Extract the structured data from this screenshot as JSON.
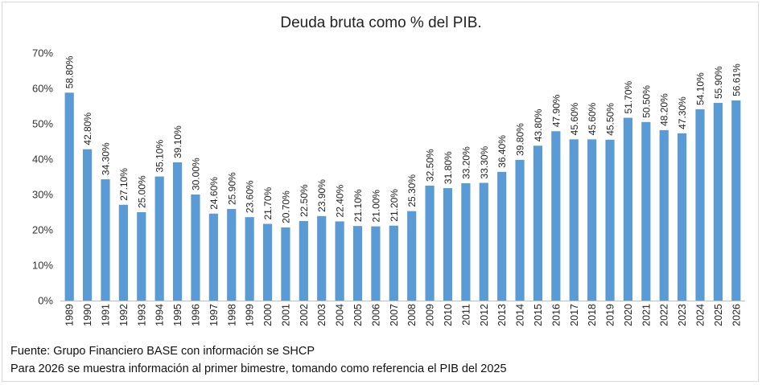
{
  "chart_data": {
    "type": "bar",
    "title": "Deuda bruta como % del PIB.",
    "xlabel": "",
    "ylabel": "",
    "ylim": [
      0,
      70
    ],
    "yticks": [
      "0%",
      "10%",
      "20%",
      "30%",
      "40%",
      "50%",
      "60%",
      "70%"
    ],
    "grid": false,
    "legend": "none",
    "bar_color": "#5b9bd5",
    "categories": [
      "1989",
      "1990",
      "1991",
      "1992",
      "1993",
      "1994",
      "1995",
      "1996",
      "1997",
      "1998",
      "1999",
      "2000",
      "2001",
      "2002",
      "2003",
      "2004",
      "2005",
      "2006",
      "2007",
      "2008",
      "2009",
      "2010",
      "2011",
      "2012",
      "2013",
      "2014",
      "2015",
      "2016",
      "2017",
      "2018",
      "2019",
      "2020",
      "2021",
      "2022",
      "2023",
      "2024",
      "2025",
      "2026"
    ],
    "values": [
      58.8,
      42.8,
      34.3,
      27.1,
      25.0,
      35.1,
      39.1,
      30.0,
      24.6,
      25.9,
      23.6,
      21.7,
      20.7,
      22.5,
      23.9,
      22.4,
      21.1,
      21.0,
      21.2,
      25.3,
      32.5,
      31.8,
      33.2,
      33.3,
      36.4,
      39.8,
      43.8,
      47.9,
      45.6,
      45.6,
      45.5,
      51.7,
      50.5,
      48.2,
      47.3,
      54.1,
      55.9,
      56.61
    ],
    "data_labels": [
      "58.80%",
      "42.80%",
      "34.30%",
      "27.10%",
      "25.00%",
      "35.10%",
      "39.10%",
      "30.00%",
      "24.60%",
      "25.90%",
      "23.60%",
      "21.70%",
      "20.70%",
      "22.50%",
      "23.90%",
      "22.40%",
      "21.10%",
      "21.00%",
      "21.20%",
      "25.30%",
      "32.50%",
      "31.80%",
      "33.20%",
      "33.30%",
      "36.40%",
      "39.80%",
      "43.80%",
      "47.90%",
      "45.60%",
      "45.60%",
      "45.50%",
      "51.70%",
      "50.50%",
      "48.20%",
      "47.30%",
      "54.10%",
      "55.90%",
      "56.61%"
    ]
  },
  "footer": {
    "source": "Fuente: Grupo Financiero BASE con información se SHCP",
    "note": "Para 2026 se muestra información al primer bimestre, tomando como referencia el PIB del 2025"
  }
}
